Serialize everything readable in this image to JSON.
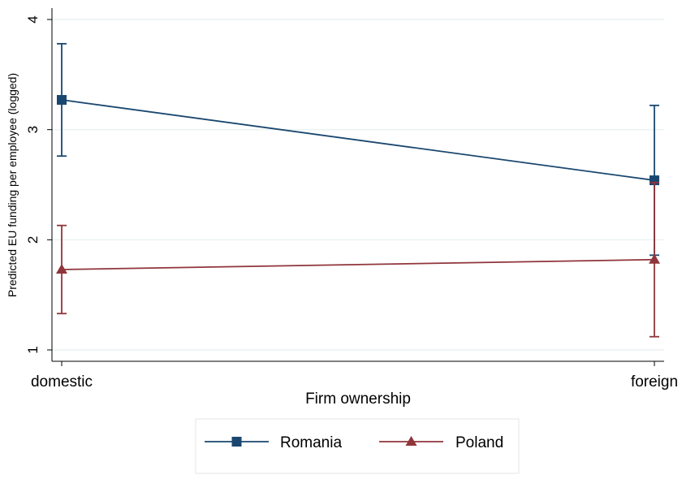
{
  "chart_data": {
    "type": "line",
    "xlabel": "Firm ownership",
    "ylabel": "Predicted EU funding per employee (logged)",
    "categories": [
      "domestic",
      "foreign"
    ],
    "ylim": [
      1,
      4
    ],
    "yticks": [
      "1",
      "2",
      "3",
      "4"
    ],
    "grid": true,
    "legend_position": "bottom",
    "series": [
      {
        "name": "Romania",
        "color": "#1a476f",
        "marker": "square",
        "values": [
          3.27,
          2.54
        ],
        "ci_low": [
          2.76,
          1.86
        ],
        "ci_high": [
          3.78,
          3.22
        ]
      },
      {
        "name": "Poland",
        "color": "#90353b",
        "marker": "triangle",
        "values": [
          1.73,
          1.82
        ],
        "ci_low": [
          1.33,
          1.12
        ],
        "ci_high": [
          2.13,
          2.52
        ]
      }
    ]
  }
}
